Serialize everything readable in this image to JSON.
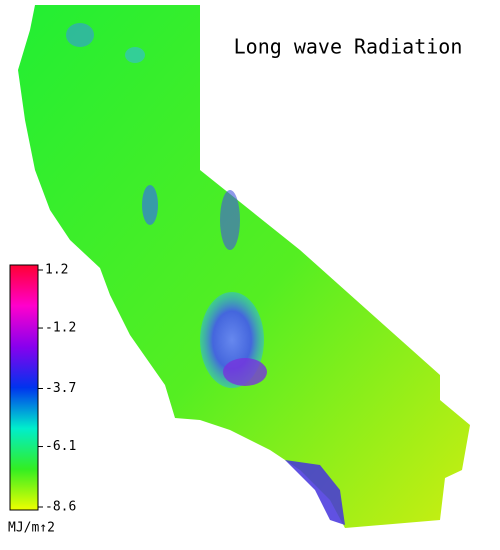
{
  "title": "Long wave Radiation",
  "colorbar": {
    "lim": [
      -8.6,
      1.2
    ],
    "ticks": [
      1.2,
      -1.2,
      -3.7,
      -6.1,
      -8.6
    ],
    "unit": "MJ/m↑2",
    "colors": [
      "#eeff00",
      "#33ee22",
      "#00eecc",
      "#0033ee",
      "#8800ee",
      "#ff00cc",
      "#ff0033"
    ]
  }
}
